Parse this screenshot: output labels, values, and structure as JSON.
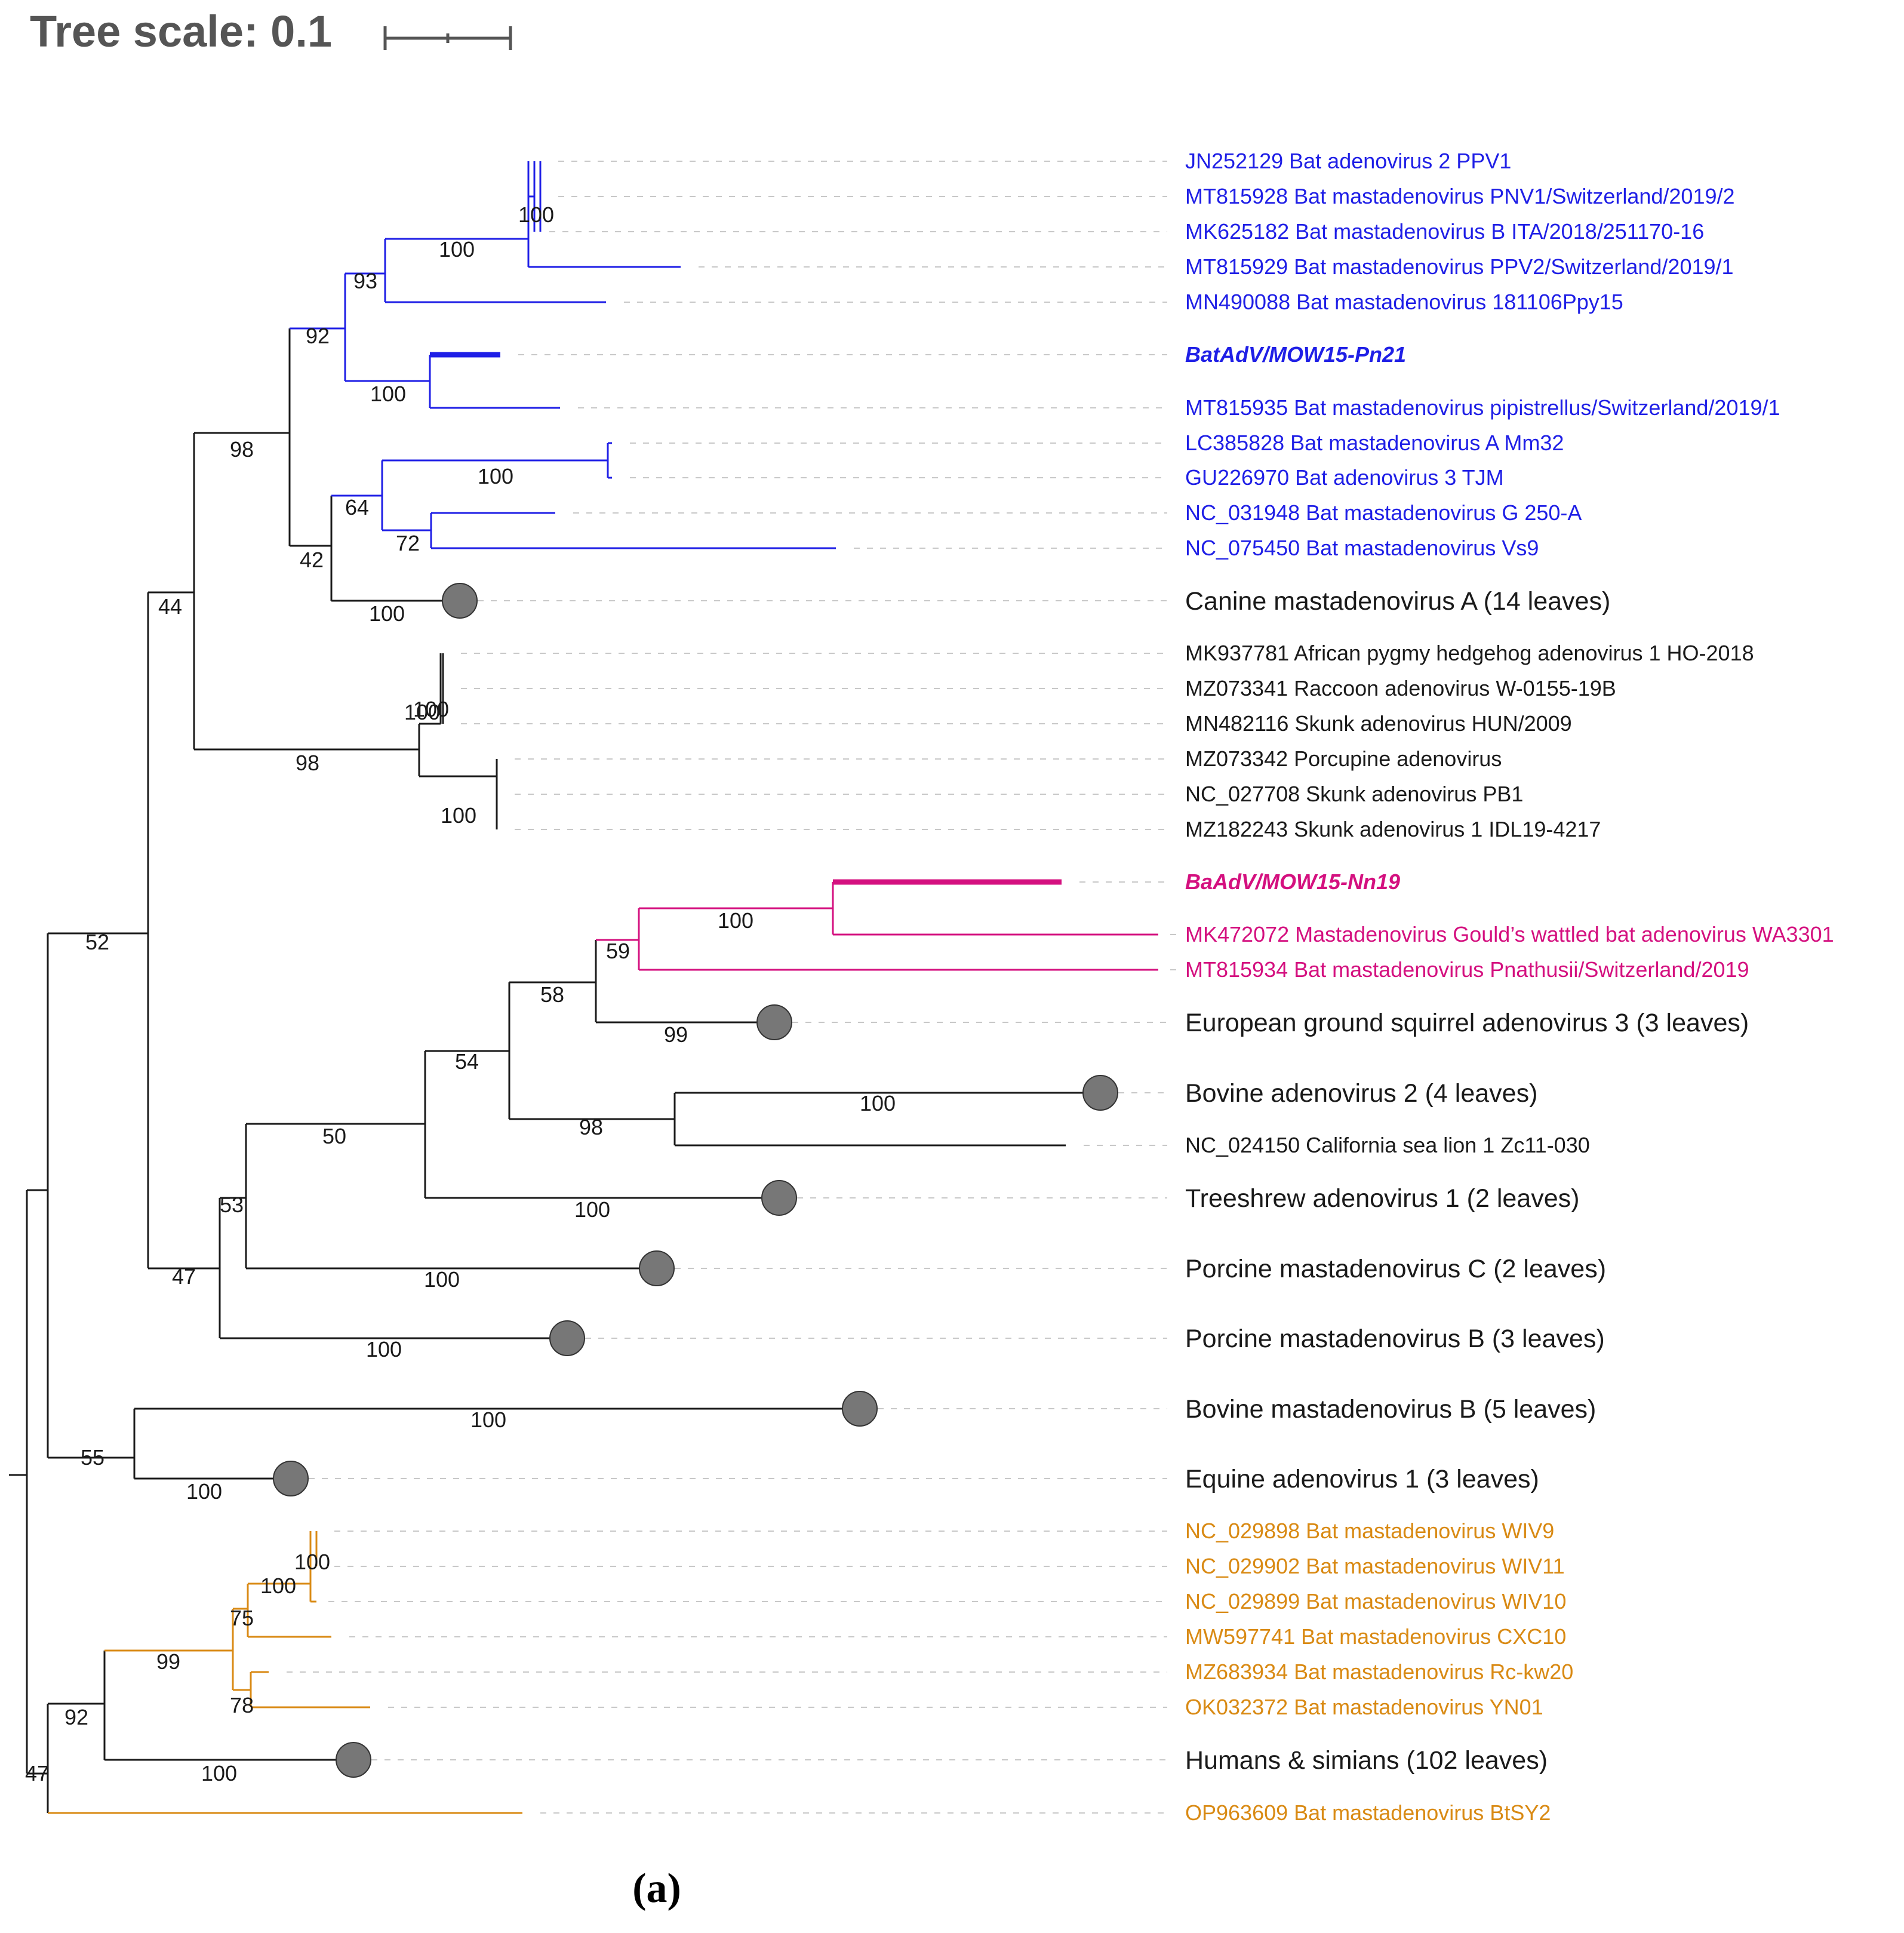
{
  "scale": {
    "label": "Tree scale: 0.1"
  },
  "caption": "(a)",
  "colors": {
    "blue": "#1f1fe6",
    "magenta": "#d4107f",
    "orange": "#d98a14",
    "black": "#1a1a1a",
    "node": "#777777"
  },
  "leaves": [
    {
      "label": "JN252129 Bat adenovirus 2 PPV1",
      "color": "blue"
    },
    {
      "label": "MT815928 Bat mastadenovirus PNV1/Switzerland/2019/2",
      "color": "blue"
    },
    {
      "label": "MK625182 Bat mastadenovirus B ITA/2018/251170-16",
      "color": "blue"
    },
    {
      "label": "MT815929 Bat mastadenovirus PPV2/Switzerland/2019/1",
      "color": "blue"
    },
    {
      "label": "MN490088 Bat mastadenovirus 181106Ppy15",
      "color": "blue"
    },
    {
      "label": "BatAdV/MOW15-Pn21",
      "color": "blue",
      "highlight": true
    },
    {
      "label": "MT815935 Bat mastadenovirus pipistrellus/Switzerland/2019/1",
      "color": "blue"
    },
    {
      "label": "LC385828 Bat mastadenovirus A Mm32",
      "color": "blue"
    },
    {
      "label": "GU226970 Bat adenovirus 3 TJM",
      "color": "blue"
    },
    {
      "label": "NC_031948 Bat mastadenovirus G 250-A",
      "color": "blue"
    },
    {
      "label": "NC_075450 Bat mastadenovirus Vs9",
      "color": "blue"
    },
    {
      "label": "Canine mastadenovirus A (14 leaves)",
      "color": "black",
      "collapsed": true
    },
    {
      "label": "MK937781 African pygmy hedgehog adenovirus 1 HO-2018",
      "color": "black"
    },
    {
      "label": "MZ073341 Raccoon adenovirus W-0155-19B",
      "color": "black"
    },
    {
      "label": "MN482116 Skunk adenovirus HUN/2009",
      "color": "black"
    },
    {
      "label": "MZ073342 Porcupine adenovirus",
      "color": "black"
    },
    {
      "label": "NC_027708 Skunk adenovirus PB1",
      "color": "black"
    },
    {
      "label": "MZ182243 Skunk adenovirus 1 IDL19-4217",
      "color": "black"
    },
    {
      "label": "BaAdV/MOW15-Nn19",
      "color": "magenta",
      "highlight": true
    },
    {
      "label": "MK472072 Mastadenovirus Gould’s wattled bat adenovirus WA3301",
      "color": "magenta"
    },
    {
      "label": "MT815934 Bat mastadenovirus Pnathusii/Switzerland/2019",
      "color": "magenta"
    },
    {
      "label": "European ground squirrel adenovirus 3 (3 leaves)",
      "color": "black",
      "collapsed": true
    },
    {
      "label": "Bovine adenovirus 2 (4 leaves)",
      "color": "black",
      "collapsed": true
    },
    {
      "label": "NC_024150 California sea lion 1 Zc11-030",
      "color": "black"
    },
    {
      "label": "Treeshrew adenovirus 1 (2 leaves)",
      "color": "black",
      "collapsed": true
    },
    {
      "label": "Porcine mastadenovirus C (2 leaves)",
      "color": "black",
      "collapsed": true
    },
    {
      "label": "Porcine mastadenovirus B (3 leaves)",
      "color": "black",
      "collapsed": true
    },
    {
      "label": "Bovine mastadenovirus B (5 leaves)",
      "color": "black",
      "collapsed": true
    },
    {
      "label": "Equine adenovirus 1 (3 leaves)",
      "color": "black",
      "collapsed": true
    },
    {
      "label": "NC_029898 Bat mastadenovirus WIV9",
      "color": "orange"
    },
    {
      "label": "NC_029902 Bat mastadenovirus WIV11",
      "color": "orange"
    },
    {
      "label": "NC_029899 Bat mastadenovirus WIV10",
      "color": "orange"
    },
    {
      "label": "MW597741 Bat mastadenovirus CXC10",
      "color": "orange"
    },
    {
      "label": "MZ683934 Bat mastadenovirus Rc-kw20",
      "color": "orange"
    },
    {
      "label": "OK032372 Bat mastadenovirus YN01",
      "color": "orange"
    },
    {
      "label": "Humans & simians (102 leaves)",
      "color": "black",
      "collapsed": true
    },
    {
      "label": "OP963609 Bat mastadenovirus BtSY2",
      "color": "orange"
    }
  ],
  "bootstrap": [
    "100",
    "100",
    "93",
    "92",
    "100",
    "98",
    "100",
    "100",
    "64",
    "72",
    "42",
    "100",
    "44",
    "100",
    "98",
    "100",
    "100",
    "59",
    "58",
    "99",
    "54",
    "100",
    "98",
    "50",
    "100",
    "53",
    "100",
    "47",
    "100",
    "52",
    "100",
    "55",
    "100",
    "100",
    "100",
    "75",
    "78",
    "99",
    "100",
    "92",
    "47"
  ]
}
